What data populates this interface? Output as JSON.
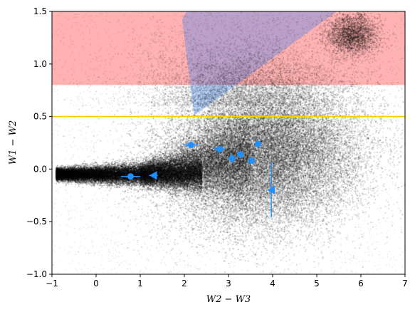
{
  "chart_data": {
    "type": "scatter",
    "xlabel": "W2 − W3",
    "ylabel": "W1 − W2",
    "xlim": [
      -1,
      7
    ],
    "ylim": [
      -1,
      1.5
    ],
    "x_ticks": [
      -1,
      0,
      1,
      2,
      3,
      4,
      5,
      6,
      7
    ],
    "y_ticks": [
      -1.0,
      -0.5,
      0.0,
      0.5,
      1.0,
      1.5
    ],
    "x_tick_labels": [
      "−1",
      "0",
      "1",
      "2",
      "3",
      "4",
      "5",
      "6",
      "7"
    ],
    "y_tick_labels": [
      "−1.0",
      "−0.5",
      "0.0",
      "0.5",
      "1.0",
      "1.5"
    ],
    "grid": false,
    "legend": "none",
    "regions": [
      {
        "shape": "band",
        "y_range": [
          0.8,
          1.5
        ],
        "x_range": [
          -1,
          7
        ],
        "color": "#ff0000",
        "opacity": 0.3
      },
      {
        "shape": "polygon",
        "points": [
          [
            1.95,
            1.42
          ],
          [
            2.05,
            1.5
          ],
          [
            5.45,
            1.5
          ],
          [
            2.22,
            0.51
          ]
        ],
        "color": "#1f77ff",
        "opacity": 0.3
      }
    ],
    "reference_lines": [
      {
        "orientation": "horizontal",
        "y": 0.5,
        "color": "#ffcc00"
      }
    ],
    "background_cloud": {
      "color": "#000000",
      "description_components": [
        {
          "kind": "dense_ridge",
          "x_range": [
            -0.9,
            2.4
          ],
          "y_center": -0.05,
          "y_spread": 0.04
        },
        {
          "kind": "broad_cloud",
          "x_center": 3.8,
          "y_center": 0.15,
          "x_spread": 1.1,
          "y_spread": 0.35
        },
        {
          "kind": "clump",
          "x_center": 5.8,
          "y_center": 1.28,
          "x_spread": 0.3,
          "y_spread": 0.1
        }
      ]
    },
    "highlighted_points": {
      "color": "#1e90ff",
      "points": [
        {
          "x": 0.78,
          "y": -0.07,
          "xerr": 0.22,
          "yerr": 0.01,
          "marker": "circle"
        },
        {
          "x": 1.3,
          "y": -0.06,
          "xerr": 0.1,
          "yerr": 0.02,
          "marker": "triangle-left"
        },
        {
          "x": 2.15,
          "y": 0.23,
          "xerr": 0.17,
          "yerr": 0.02,
          "marker": "circle"
        },
        {
          "x": 2.8,
          "y": 0.19,
          "xerr": 0.12,
          "yerr": 0.02,
          "marker": "circle"
        },
        {
          "x": 3.08,
          "y": 0.1,
          "xerr": 0.08,
          "yerr": 0.04,
          "marker": "circle"
        },
        {
          "x": 3.27,
          "y": 0.14,
          "xerr": 0.05,
          "yerr": 0.02,
          "marker": "circle"
        },
        {
          "x": 3.52,
          "y": 0.08,
          "xerr": 0.03,
          "yerr": 0.02,
          "marker": "circle"
        },
        {
          "x": 3.67,
          "y": 0.24,
          "xerr": 0.05,
          "yerr": 0.02,
          "marker": "circle"
        },
        {
          "x": 3.97,
          "y": -0.2,
          "xerr": 0.05,
          "yerr": 0.26,
          "marker": "triangle-left"
        }
      ]
    }
  }
}
